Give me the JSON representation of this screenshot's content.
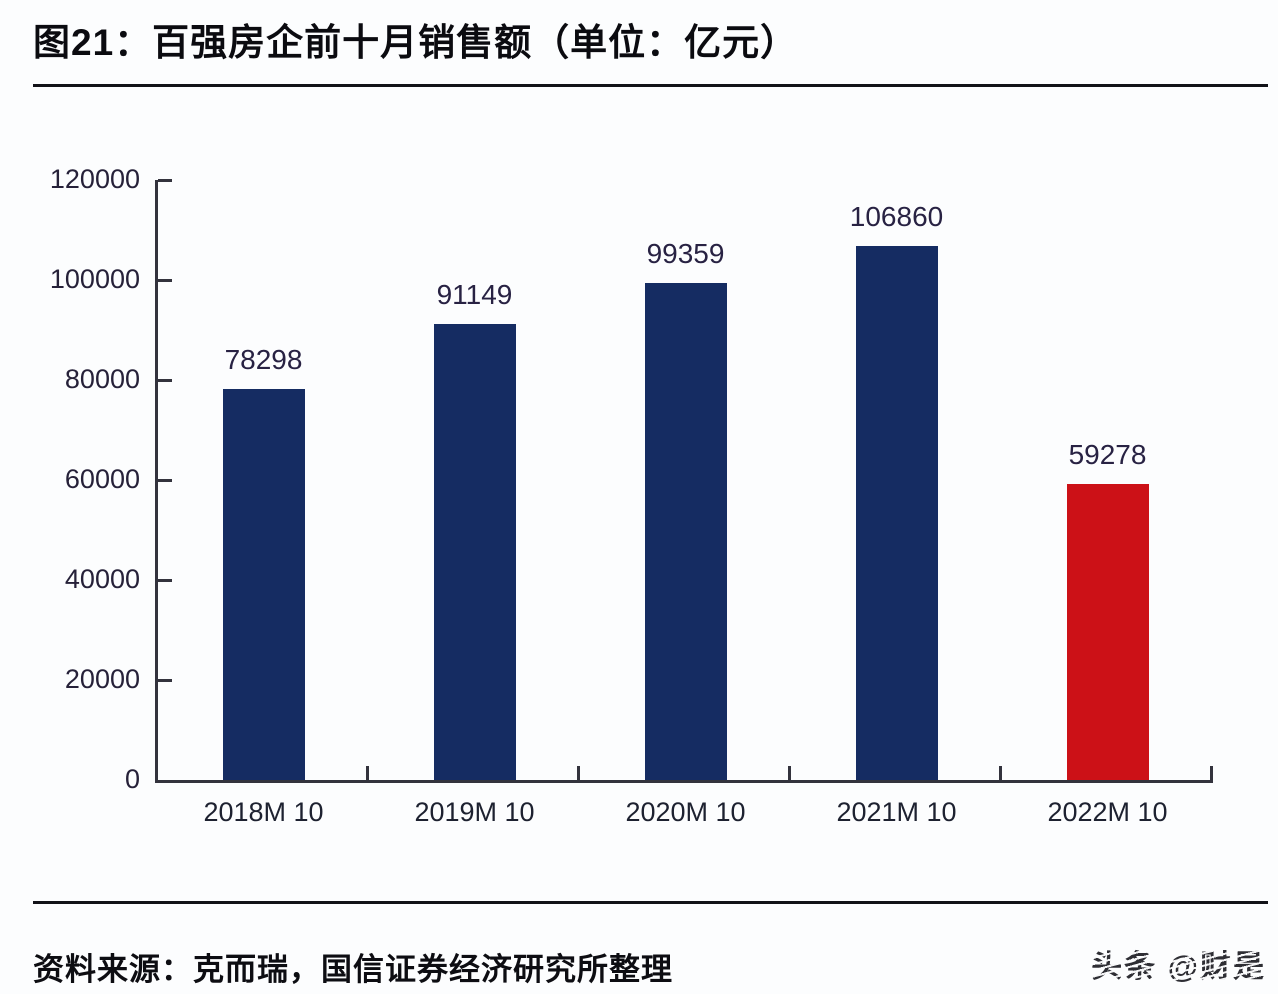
{
  "page": {
    "title": "图21：百强房企前十月销售额（单位：亿元）",
    "source": "资料来源：克而瑞，国信证券经济研究所整理",
    "watermark": "头条 @财是"
  },
  "chart_data": {
    "type": "bar",
    "title": "图21：百强房企前十月销售额（单位：亿元）",
    "categories": [
      "2018M 10",
      "2019M 10",
      "2020M 10",
      "2021M 10",
      "2022M 10"
    ],
    "values": [
      78298,
      91149,
      99359,
      106860,
      59278
    ],
    "bar_colors": [
      "#152C62",
      "#152C62",
      "#152C62",
      "#152C62",
      "#CC1117"
    ],
    "value_labels": [
      78298,
      91149,
      99359,
      106860,
      59278
    ],
    "xlabel": "",
    "ylabel": "",
    "unit": "亿元",
    "ylim": [
      0,
      120000
    ],
    "yticks": [
      0,
      20000,
      40000,
      60000,
      80000,
      100000,
      120000
    ],
    "grid": false,
    "legend": null,
    "colors": {
      "bar_navy": "#152C62",
      "bar_red": "#CC1117",
      "axis": "#33333d",
      "text": "#262139"
    }
  }
}
